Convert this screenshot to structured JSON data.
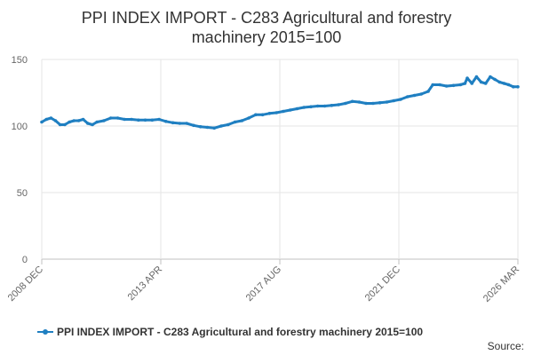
{
  "chart_data": {
    "type": "line",
    "title_lines": [
      "PPI INDEX IMPORT - C283 Agricultural and forestry",
      "machinery 2015=100"
    ],
    "xlabel": "",
    "ylabel": "",
    "ylim": [
      0,
      150
    ],
    "y_ticks": [
      0,
      50,
      100,
      150
    ],
    "x_tick_labels": [
      "2008 DEC",
      "2013 APR",
      "2017 AUG",
      "2021 DEC",
      "2026 MAR"
    ],
    "x_range": [
      "2008-12",
      "2026-03"
    ],
    "grid": true,
    "legend_position": "bottom",
    "color": "#1f7fc1",
    "series": [
      {
        "name": "PPI INDEX IMPORT - C283 Agricultural and forestry machinery 2015=100",
        "points": [
          [
            "2008-12",
            103
          ],
          [
            "2009-02",
            105
          ],
          [
            "2009-04",
            106
          ],
          [
            "2009-06",
            104
          ],
          [
            "2009-08",
            101
          ],
          [
            "2009-10",
            101
          ],
          [
            "2009-12",
            103
          ],
          [
            "2010-02",
            104
          ],
          [
            "2010-04",
            104
          ],
          [
            "2010-06",
            105
          ],
          [
            "2010-08",
            102
          ],
          [
            "2010-10",
            101
          ],
          [
            "2010-12",
            103
          ],
          [
            "2011-03",
            104
          ],
          [
            "2011-06",
            106
          ],
          [
            "2011-09",
            106
          ],
          [
            "2011-12",
            105
          ],
          [
            "2012-03",
            105
          ],
          [
            "2012-06",
            104.5
          ],
          [
            "2012-09",
            104.5
          ],
          [
            "2012-12",
            104.5
          ],
          [
            "2013-03",
            105
          ],
          [
            "2013-06",
            103.5
          ],
          [
            "2013-09",
            102.5
          ],
          [
            "2013-12",
            102
          ],
          [
            "2014-03",
            102
          ],
          [
            "2014-06",
            100.5
          ],
          [
            "2014-09",
            99.5
          ],
          [
            "2014-12",
            99
          ],
          [
            "2015-03",
            98.5
          ],
          [
            "2015-06",
            100
          ],
          [
            "2015-09",
            101
          ],
          [
            "2015-12",
            103
          ],
          [
            "2016-03",
            104
          ],
          [
            "2016-06",
            106
          ],
          [
            "2016-09",
            108.5
          ],
          [
            "2016-12",
            108.5
          ],
          [
            "2017-03",
            109.5
          ],
          [
            "2017-06",
            110
          ],
          [
            "2017-09",
            111
          ],
          [
            "2017-12",
            112
          ],
          [
            "2018-03",
            113
          ],
          [
            "2018-06",
            114
          ],
          [
            "2018-09",
            114.5
          ],
          [
            "2018-12",
            115
          ],
          [
            "2019-03",
            115
          ],
          [
            "2019-06",
            115.5
          ],
          [
            "2019-09",
            116
          ],
          [
            "2019-12",
            117
          ],
          [
            "2020-03",
            118.5
          ],
          [
            "2020-06",
            118
          ],
          [
            "2020-09",
            117
          ],
          [
            "2020-12",
            117
          ],
          [
            "2021-03",
            117.5
          ],
          [
            "2021-06",
            118
          ],
          [
            "2021-09",
            119
          ],
          [
            "2021-12",
            120
          ],
          [
            "2022-03",
            122
          ],
          [
            "2022-06",
            123
          ],
          [
            "2022-09",
            124
          ],
          [
            "2022-12",
            126
          ],
          [
            "2023-02",
            131
          ],
          [
            "2023-05",
            131
          ],
          [
            "2023-08",
            130
          ],
          [
            "2023-11",
            130.5
          ],
          [
            "2024-02",
            131
          ],
          [
            "2024-04",
            132
          ],
          [
            "2024-05",
            136
          ],
          [
            "2024-07",
            132
          ],
          [
            "2024-09",
            137
          ],
          [
            "2024-11",
            133
          ],
          [
            "2025-01",
            132
          ],
          [
            "2025-03",
            137
          ],
          [
            "2025-05",
            135
          ],
          [
            "2025-07",
            133
          ],
          [
            "2025-09",
            132
          ],
          [
            "2025-11",
            131
          ],
          [
            "2026-01",
            129.5
          ],
          [
            "2026-03",
            129.5
          ]
        ]
      }
    ]
  },
  "footer": {
    "source_label": "Source:"
  }
}
